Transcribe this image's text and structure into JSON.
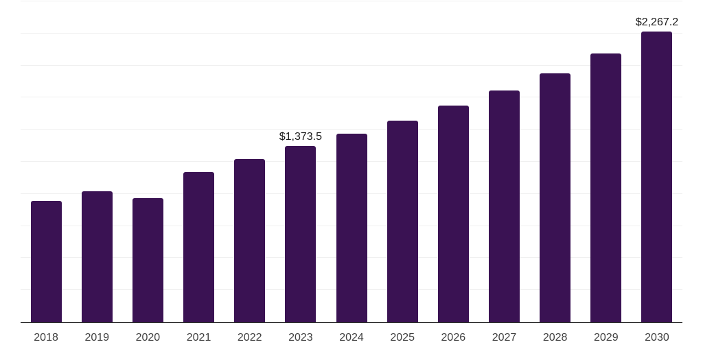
{
  "chart": {
    "colors": {
      "bar": "#3a1253",
      "gridline": "#f0f0f0",
      "axis_line": "#262626",
      "value_label_text": "#1a1a1a",
      "tick_label_text": "#404040",
      "background": "#ffffff"
    }
  },
  "chart_data": {
    "type": "bar",
    "title": "",
    "xlabel": "",
    "ylabel": "",
    "categories": [
      "2018",
      "2019",
      "2020",
      "2021",
      "2022",
      "2023",
      "2024",
      "2025",
      "2026",
      "2027",
      "2028",
      "2029",
      "2030"
    ],
    "values": [
      945,
      1021,
      967,
      1172,
      1270,
      1373.5,
      1467,
      1572,
      1690,
      1808,
      1940,
      2096,
      2267.2
    ],
    "point_labels": [
      "",
      "",
      "",
      "",
      "",
      "$1,373.5",
      "",
      "",
      "",
      "",
      "",
      "",
      "$2,267.2"
    ],
    "ylim": [
      0,
      2500
    ],
    "gridline_step": 250,
    "grid": "horizontal-only",
    "y_axis_tick_labels_visible": false,
    "legend": "none"
  }
}
